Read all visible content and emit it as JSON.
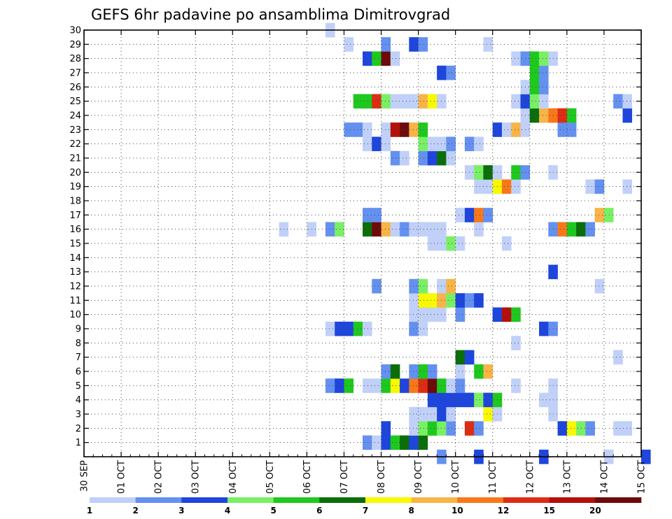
{
  "chart_data": {
    "type": "heatmap",
    "title": "GEFS 6hr padavine po ansamblima Dimitrovgrad",
    "x_tick_labels": [
      "30 SEP",
      "01 OCT",
      "02 OCT",
      "03 OCT",
      "04 OCT",
      "05 OCT",
      "06 OCT",
      "07 OCT",
      "08 OCT",
      "09 OCT",
      "10 OCT",
      "11 OCT",
      "12 OCT",
      "13 OCT",
      "14 OCT",
      "15 OCT"
    ],
    "y_tick_labels": [
      "1",
      "2",
      "3",
      "4",
      "5",
      "6",
      "7",
      "8",
      "9",
      "10",
      "11",
      "12",
      "13",
      "14",
      "15",
      "16",
      "17",
      "18",
      "19",
      "20",
      "21",
      "22",
      "23",
      "24",
      "25",
      "26",
      "27",
      "28",
      "29",
      "30"
    ],
    "x_range": [
      "30 SEP",
      "15 OCT"
    ],
    "y_range": [
      0,
      30
    ],
    "steps_per_day": 4,
    "grid": "dotted",
    "legend_position": "bottom",
    "legend_levels": [
      "1",
      "2",
      "3",
      "4",
      "5",
      "6",
      "7",
      "8",
      "10",
      "12",
      "15",
      "20"
    ],
    "colors": [
      "#c0d0f8",
      "#6490f0",
      "#1e46dc",
      "#78f064",
      "#1ec81e",
      "#0a6e0a",
      "#f8f800",
      "#f8b446",
      "#f87819",
      "#dc2d14",
      "#b40f0a",
      "#6e0a0a"
    ],
    "colors_note": "class 0: 1-2, 1: 2-3, 2: 3-4, 3: 4-5, 4: 5-6, 5: 6-7, 6: 7-8, 7: 8-10, 8: 10-12, 9: 12-15, 10: 15-20, 11: >20 mm",
    "members": [
      {
        "member": 0,
        "steps": [
          [
            38,
            1
          ],
          [
            42,
            2
          ],
          [
            49,
            2
          ],
          [
            56,
            0
          ],
          [
            60,
            2
          ]
        ]
      },
      {
        "member": 1,
        "steps": [
          [
            30,
            1
          ],
          [
            31,
            0
          ],
          [
            32,
            2
          ],
          [
            33,
            4
          ],
          [
            34,
            5
          ],
          [
            35,
            2
          ],
          [
            36,
            5
          ]
        ]
      },
      {
        "member": 2,
        "steps": [
          [
            32,
            2
          ],
          [
            35,
            0
          ],
          [
            36,
            3
          ],
          [
            37,
            4
          ],
          [
            38,
            3
          ],
          [
            39,
            1
          ],
          [
            41,
            9
          ],
          [
            42,
            1
          ],
          [
            51,
            2
          ],
          [
            52,
            6
          ],
          [
            53,
            3
          ],
          [
            54,
            1
          ],
          [
            57,
            0
          ],
          [
            58,
            0
          ]
        ]
      },
      {
        "member": 3,
        "steps": [
          [
            35,
            0
          ],
          [
            36,
            0
          ],
          [
            37,
            0
          ],
          [
            38,
            2
          ],
          [
            39,
            0
          ],
          [
            43,
            6
          ],
          [
            44,
            0
          ],
          [
            50,
            0
          ]
        ]
      },
      {
        "member": 4,
        "steps": [
          [
            37,
            2
          ],
          [
            38,
            2
          ],
          [
            39,
            2
          ],
          [
            40,
            2
          ],
          [
            41,
            2
          ],
          [
            42,
            3
          ],
          [
            43,
            2
          ],
          [
            44,
            4
          ],
          [
            49,
            0
          ],
          [
            50,
            0
          ]
        ]
      },
      {
        "member": 5,
        "steps": [
          [
            26,
            1
          ],
          [
            27,
            2
          ],
          [
            28,
            4
          ],
          [
            30,
            0
          ],
          [
            31,
            0
          ],
          [
            32,
            4
          ],
          [
            33,
            6
          ],
          [
            34,
            2
          ],
          [
            35,
            8
          ],
          [
            36,
            9
          ],
          [
            37,
            11
          ],
          [
            38,
            4
          ],
          [
            39,
            0
          ],
          [
            40,
            1
          ],
          [
            46,
            0
          ],
          [
            50,
            0
          ]
        ]
      },
      {
        "member": 6,
        "steps": [
          [
            32,
            1
          ],
          [
            33,
            5
          ],
          [
            35,
            1
          ],
          [
            36,
            4
          ],
          [
            37,
            1
          ],
          [
            40,
            0
          ],
          [
            42,
            4
          ],
          [
            43,
            7
          ]
        ]
      },
      {
        "member": 7,
        "steps": [
          [
            40,
            5
          ],
          [
            41,
            2
          ],
          [
            57,
            0
          ]
        ]
      },
      {
        "member": 8,
        "steps": [
          [
            46,
            0
          ]
        ]
      },
      {
        "member": 9,
        "steps": [
          [
            26,
            0
          ],
          [
            27,
            2
          ],
          [
            28,
            2
          ],
          [
            29,
            4
          ],
          [
            30,
            0
          ],
          [
            35,
            1
          ],
          [
            36,
            0
          ],
          [
            49,
            2
          ],
          [
            50,
            1
          ]
        ]
      },
      {
        "member": 10,
        "steps": [
          [
            35,
            0
          ],
          [
            36,
            0
          ],
          [
            37,
            0
          ],
          [
            38,
            0
          ],
          [
            40,
            1
          ],
          [
            44,
            2
          ],
          [
            45,
            10
          ],
          [
            46,
            4
          ]
        ]
      },
      {
        "member": 11,
        "steps": [
          [
            35,
            0
          ],
          [
            36,
            6
          ],
          [
            37,
            6
          ],
          [
            38,
            7
          ],
          [
            39,
            3
          ],
          [
            40,
            2
          ],
          [
            41,
            1
          ],
          [
            42,
            2
          ]
        ]
      },
      {
        "member": 12,
        "steps": [
          [
            31,
            1
          ],
          [
            35,
            1
          ],
          [
            36,
            3
          ],
          [
            38,
            0
          ],
          [
            39,
            7
          ],
          [
            55,
            0
          ]
        ]
      },
      {
        "member": 13,
        "steps": [
          [
            50,
            2
          ]
        ]
      },
      {
        "member": 15,
        "steps": [
          [
            37,
            0
          ],
          [
            38,
            0
          ],
          [
            39,
            3
          ],
          [
            40,
            0
          ],
          [
            45,
            0
          ]
        ]
      },
      {
        "member": 16,
        "steps": [
          [
            21,
            0
          ],
          [
            24,
            0
          ],
          [
            26,
            1
          ],
          [
            27,
            3
          ],
          [
            30,
            5
          ],
          [
            31,
            11
          ],
          [
            32,
            7
          ],
          [
            33,
            0
          ],
          [
            34,
            1
          ],
          [
            35,
            0
          ],
          [
            36,
            0
          ],
          [
            37,
            0
          ],
          [
            38,
            0
          ],
          [
            42,
            0
          ],
          [
            50,
            1
          ],
          [
            51,
            8
          ],
          [
            52,
            4
          ],
          [
            53,
            5
          ],
          [
            54,
            1
          ]
        ]
      },
      {
        "member": 17,
        "steps": [
          [
            30,
            1
          ],
          [
            31,
            1
          ],
          [
            40,
            0
          ],
          [
            41,
            2
          ],
          [
            42,
            8
          ],
          [
            43,
            1
          ],
          [
            55,
            7
          ],
          [
            56,
            3
          ]
        ]
      },
      {
        "member": 19,
        "steps": [
          [
            42,
            0
          ],
          [
            43,
            0
          ],
          [
            44,
            6
          ],
          [
            45,
            8
          ],
          [
            46,
            0
          ],
          [
            54,
            0
          ],
          [
            55,
            1
          ],
          [
            58,
            0
          ]
        ]
      },
      {
        "member": 20,
        "steps": [
          [
            41,
            0
          ],
          [
            42,
            3
          ],
          [
            43,
            5
          ],
          [
            44,
            0
          ],
          [
            46,
            4
          ],
          [
            47,
            1
          ],
          [
            50,
            0
          ]
        ]
      },
      {
        "member": 21,
        "steps": [
          [
            33,
            1
          ],
          [
            34,
            0
          ],
          [
            36,
            1
          ],
          [
            37,
            2
          ],
          [
            38,
            5
          ],
          [
            39,
            0
          ]
        ]
      },
      {
        "member": 22,
        "steps": [
          [
            30,
            0
          ],
          [
            31,
            2
          ],
          [
            32,
            0
          ],
          [
            36,
            3
          ],
          [
            37,
            0
          ],
          [
            38,
            0
          ],
          [
            39,
            1
          ],
          [
            41,
            1
          ],
          [
            42,
            0
          ]
        ]
      },
      {
        "member": 23,
        "steps": [
          [
            28,
            1
          ],
          [
            29,
            1
          ],
          [
            30,
            0
          ],
          [
            32,
            0
          ],
          [
            33,
            10
          ],
          [
            34,
            11
          ],
          [
            35,
            7
          ],
          [
            36,
            4
          ],
          [
            44,
            2
          ],
          [
            45,
            0
          ],
          [
            46,
            7
          ],
          [
            47,
            0
          ],
          [
            51,
            1
          ],
          [
            52,
            1
          ]
        ]
      },
      {
        "member": 24,
        "steps": [
          [
            47,
            0
          ],
          [
            48,
            5
          ],
          [
            49,
            7
          ],
          [
            50,
            8
          ],
          [
            51,
            9
          ],
          [
            52,
            4
          ],
          [
            58,
            2
          ]
        ]
      },
      {
        "member": 25,
        "steps": [
          [
            29,
            4
          ],
          [
            30,
            4
          ],
          [
            31,
            9
          ],
          [
            32,
            3
          ],
          [
            33,
            0
          ],
          [
            34,
            0
          ],
          [
            35,
            0
          ],
          [
            36,
            7
          ],
          [
            37,
            6
          ],
          [
            38,
            0
          ],
          [
            46,
            0
          ],
          [
            47,
            2
          ],
          [
            48,
            3
          ],
          [
            49,
            0
          ],
          [
            57,
            1
          ],
          [
            58,
            0
          ]
        ]
      },
      {
        "member": 26,
        "steps": [
          [
            47,
            0
          ],
          [
            48,
            4
          ],
          [
            49,
            1
          ]
        ]
      },
      {
        "member": 27,
        "steps": [
          [
            38,
            2
          ],
          [
            39,
            1
          ],
          [
            48,
            4
          ],
          [
            49,
            1
          ]
        ]
      },
      {
        "member": 28,
        "steps": [
          [
            30,
            2
          ],
          [
            31,
            4
          ],
          [
            32,
            11
          ],
          [
            33,
            0
          ],
          [
            46,
            0
          ],
          [
            47,
            1
          ],
          [
            48,
            4
          ],
          [
            49,
            3
          ],
          [
            50,
            0
          ]
        ]
      },
      {
        "member": 29,
        "steps": [
          [
            28,
            0
          ],
          [
            32,
            1
          ],
          [
            35,
            2
          ],
          [
            36,
            1
          ],
          [
            43,
            0
          ]
        ]
      },
      {
        "member": 30,
        "steps": [
          [
            26,
            0
          ]
        ]
      }
    ]
  }
}
